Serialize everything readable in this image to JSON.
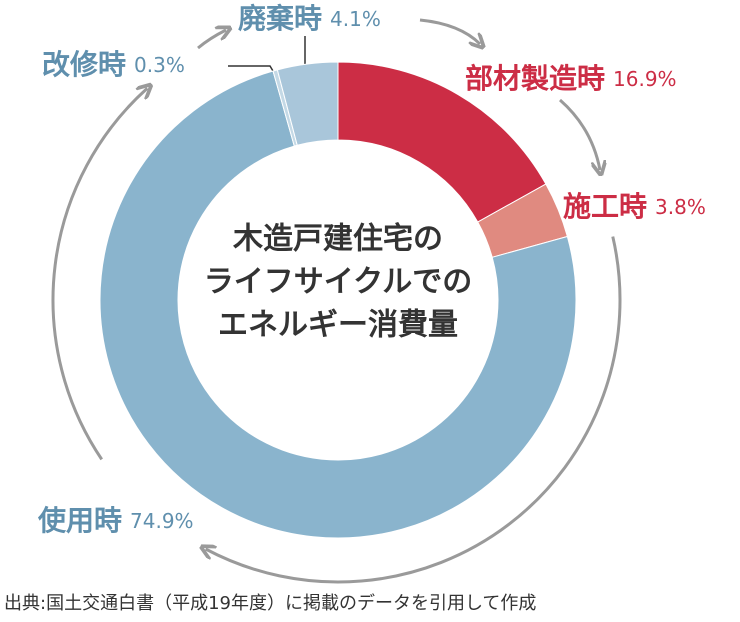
{
  "chart_data": {
    "type": "donut",
    "title": [
      "木造戸建住宅の",
      "ライフサイクルでの",
      "エネルギー消費量"
    ],
    "categories": [
      "部材製造時",
      "施工時",
      "使用時",
      "改修時",
      "廃棄時"
    ],
    "values": [
      16.9,
      3.8,
      74.9,
      0.3,
      4.1
    ],
    "value_labels": [
      "16.9%",
      "3.8%",
      "74.9%",
      "0.3%",
      "4.1%"
    ],
    "colors": [
      "#cc2d45",
      "#e08a80",
      "#8ab4cd",
      "#c4d9e6",
      "#a9c6da"
    ],
    "label_colors": [
      "#cc2d45",
      "#cc2d45",
      "#5f8fad",
      "#5f8fad",
      "#5f8fad"
    ]
  },
  "source": "出典:国土交通白書（平成19年度）に掲載のデータを引用して作成"
}
